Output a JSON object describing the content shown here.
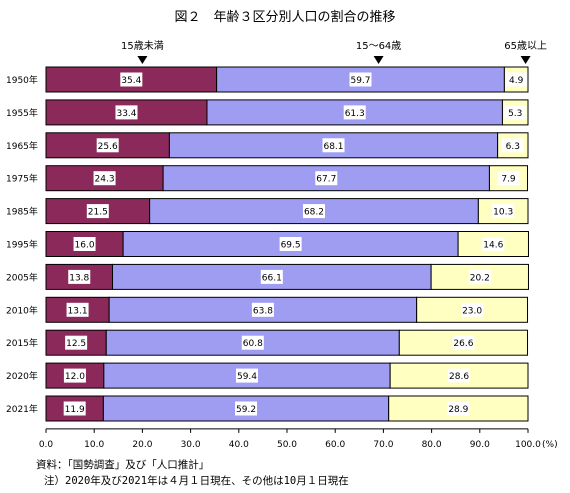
{
  "chart_data": {
    "type": "bar",
    "orientation": "horizontal",
    "stacked": true,
    "title": "図２　年齢３区分別人口の割合の推移",
    "categories": [
      "1950年",
      "1955年",
      "1965年",
      "1975年",
      "1985年",
      "1995年",
      "2005年",
      "2010年",
      "2015年",
      "2020年",
      "2021年"
    ],
    "series": [
      {
        "name": "15歳未満",
        "color": "#8b2a5a",
        "label_bg": "#ffffff",
        "values": [
          35.4,
          33.4,
          25.6,
          24.3,
          21.5,
          16.0,
          13.8,
          13.1,
          12.5,
          12.0,
          11.9
        ],
        "labels": [
          "35.4",
          "33.4",
          "25.6",
          "24.3",
          "21.5",
          "16.0",
          "13.8",
          "13.1",
          "12.5",
          "12.0",
          "11.9"
        ]
      },
      {
        "name": "15～64歳",
        "color": "#9f9df2",
        "label_bg": "#ffffff",
        "values": [
          59.7,
          61.3,
          68.1,
          67.7,
          68.2,
          69.5,
          66.1,
          63.8,
          60.8,
          59.4,
          59.2
        ],
        "labels": [
          "59.7",
          "61.3",
          "68.1",
          "67.7",
          "68.2",
          "69.5",
          "66.1",
          "63.8",
          "60.8",
          "59.4",
          "59.2"
        ]
      },
      {
        "name": "65歳以上",
        "color": "#ffffc2",
        "label_bg": "#ffffff",
        "values": [
          4.9,
          5.3,
          6.3,
          7.9,
          10.3,
          14.6,
          20.2,
          23.0,
          26.6,
          28.6,
          28.9
        ],
        "labels": [
          "4.9",
          "5.3",
          "6.3",
          "7.9",
          "10.3",
          "14.6",
          "20.2",
          "23.0",
          "26.6",
          "28.6",
          "28.9"
        ]
      }
    ],
    "xlim": [
      0,
      100
    ],
    "xticks": [
      "0.0",
      "10.0",
      "20.0",
      "30.0",
      "40.0",
      "50.0",
      "60.0",
      "70.0",
      "80.0",
      "90.0",
      "100.0"
    ],
    "xunit": "(%)",
    "legend_labels": [
      {
        "text": "15歳未満",
        "pos": 20
      },
      {
        "text": "15～64歳",
        "pos": 69
      },
      {
        "text": "65歳以上",
        "pos": 99.5
      }
    ],
    "grid": false
  },
  "notes": {
    "source": "資料：「国勢調査」及び「人口推計」",
    "note": "注）2020年及び2021年は４月１日現在、その他は10月１日現在"
  }
}
